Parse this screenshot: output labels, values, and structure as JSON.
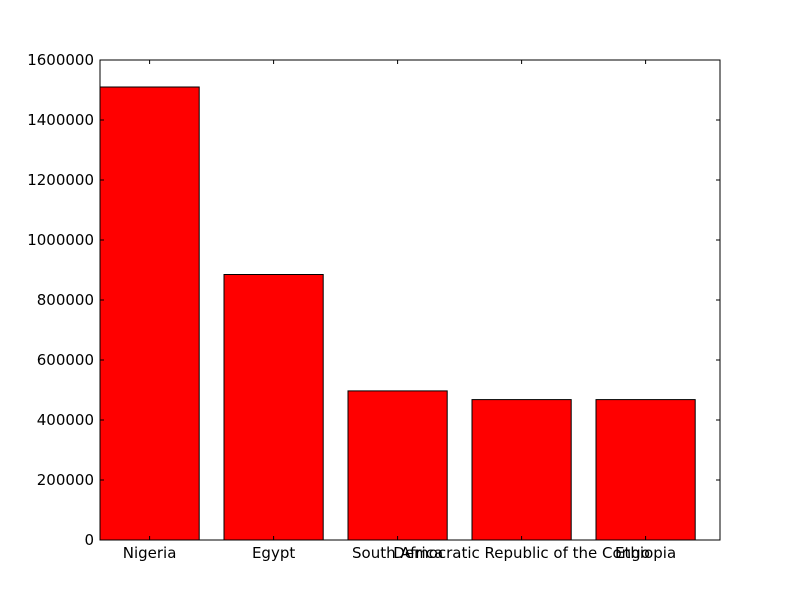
{
  "chart_data": {
    "type": "bar",
    "title": "",
    "xlabel": "",
    "ylabel": "",
    "categories": [
      "Nigeria",
      "Egypt",
      "South Africa",
      "Democratic Republic of the Congo",
      "Ethiopia"
    ],
    "values": [
      1510000,
      885000,
      497000,
      468000,
      468000
    ],
    "ylim": [
      0,
      1600000
    ],
    "yticks": [
      0,
      200000,
      400000,
      600000,
      800000,
      1000000,
      1200000,
      1400000,
      1600000
    ],
    "bar_color": "#ff0000",
    "edge_color": "#000000",
    "grid": false,
    "legend": "none"
  }
}
